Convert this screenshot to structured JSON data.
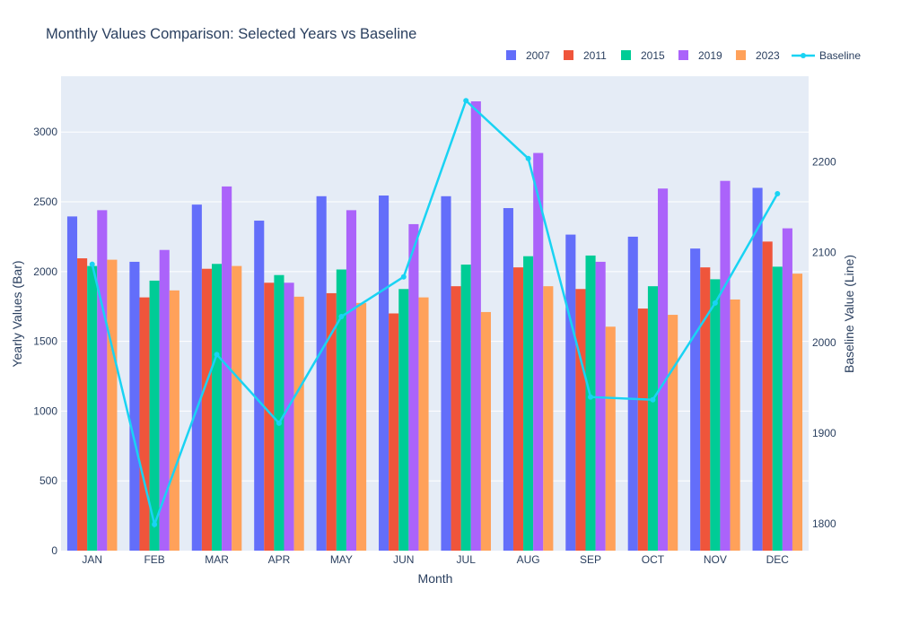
{
  "chart_data": {
    "type": "bar",
    "title": "Monthly Values Comparison: Selected Years vs Baseline",
    "xlabel": "Month",
    "ylabel": "Yearly Values (Bar)",
    "y2label": "Baseline Value (Line)",
    "categories": [
      "JAN",
      "FEB",
      "MAR",
      "APR",
      "MAY",
      "JUN",
      "JUL",
      "AUG",
      "SEP",
      "OCT",
      "NOV",
      "DEC"
    ],
    "ylim": [
      0,
      3400
    ],
    "y2lim": [
      1770,
      2295
    ],
    "yticks": [
      0,
      500,
      1000,
      1500,
      2000,
      2500,
      3000
    ],
    "y2ticks": [
      1800,
      1900,
      2000,
      2100,
      2200
    ],
    "legend_position": "top-right",
    "grid": true,
    "series": [
      {
        "name": "2007",
        "color": "#636efa",
        "values": [
          2395,
          2070,
          2480,
          2365,
          2540,
          2545,
          2540,
          2455,
          2265,
          2250,
          2165,
          2600
        ]
      },
      {
        "name": "2011",
        "color": "#ef553b",
        "values": [
          2095,
          1815,
          2020,
          1920,
          1845,
          1700,
          1895,
          2030,
          1875,
          1735,
          2030,
          2215
        ]
      },
      {
        "name": "2015",
        "color": "#00cc96",
        "values": [
          2040,
          1935,
          2055,
          1975,
          2015,
          1875,
          2050,
          2110,
          2115,
          1895,
          1945,
          2035
        ]
      },
      {
        "name": "2019",
        "color": "#ab63fa",
        "values": [
          2440,
          2155,
          2610,
          1920,
          2440,
          2340,
          3220,
          2850,
          2070,
          2595,
          2650,
          2310
        ]
      },
      {
        "name": "2023",
        "color": "#ffa15a",
        "values": [
          2085,
          1865,
          2040,
          1820,
          1775,
          1815,
          1710,
          1895,
          1605,
          1690,
          1800,
          1985
        ]
      }
    ],
    "line": {
      "name": "Baseline",
      "color": "#19d3f3",
      "values": [
        2087,
        1799,
        1987,
        1911,
        2029,
        2073,
        2268,
        2204,
        1940,
        1937,
        2044,
        2165
      ]
    }
  }
}
